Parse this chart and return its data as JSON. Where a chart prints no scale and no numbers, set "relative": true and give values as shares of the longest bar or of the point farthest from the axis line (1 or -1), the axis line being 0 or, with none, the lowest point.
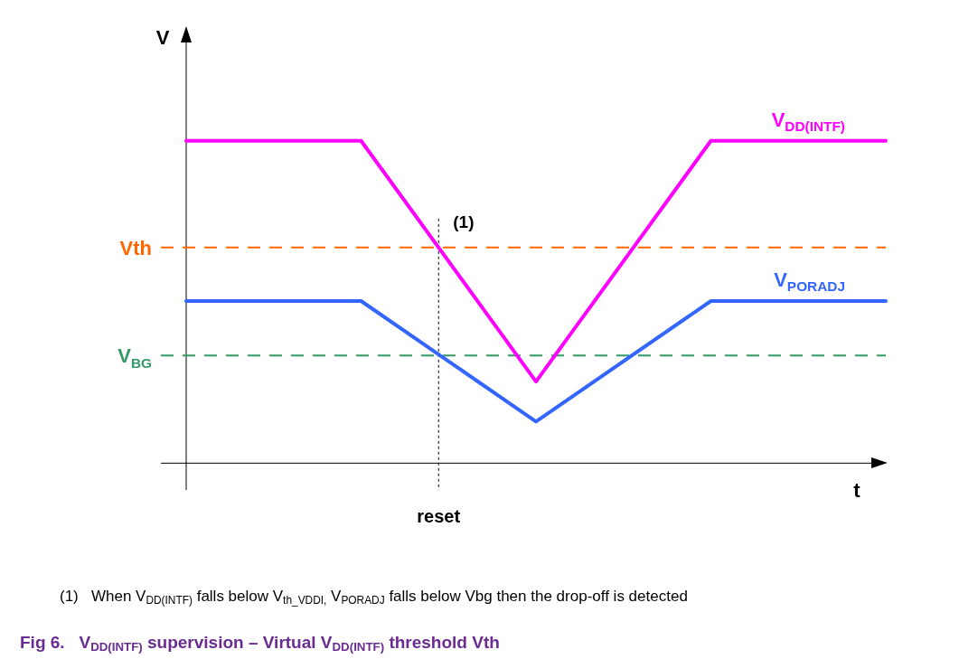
{
  "chart_data": {
    "type": "line",
    "relative": true,
    "title": "Fig 6.   V$_{DD(INTF)}$ supervision – Virtual V$_{DD(INTF)}$ threshold Vth",
    "xlabel": "t",
    "ylabel": "V",
    "categories": [
      null,
      null,
      null,
      null,
      null
    ],
    "series": [
      {
        "name": "V$_{DD(INTF)}$",
        "color": "#ff00ff",
        "values": [
          1,
          1,
          0.253,
          1,
          1
        ]
      },
      {
        "name": "V$_{PORADJ}$",
        "color": "#3366ff",
        "values": [
          0.503,
          0.503,
          0.129,
          0.503,
          0.503
        ]
      }
    ],
    "ref_lines": [
      {
        "axis": "y",
        "value": 0.669,
        "label": "Vth",
        "color": "#ff6600",
        "line_style": "dashed"
      },
      {
        "axis": "y",
        "value": 0.334,
        "label": "V$_{BG}$",
        "color": "#339966",
        "line_style": "dashed"
      }
    ],
    "annotations": [
      "(1)",
      "reset",
      "(1)   When V$_{DD(INTF)}$ falls below V$_{th_VDDI,}$ V$_{PORADJ}$ falls below Vbg then the drop-off is detected"
    ],
    "legend": false,
    "marker": "none",
    "line_style": "solid"
  }
}
